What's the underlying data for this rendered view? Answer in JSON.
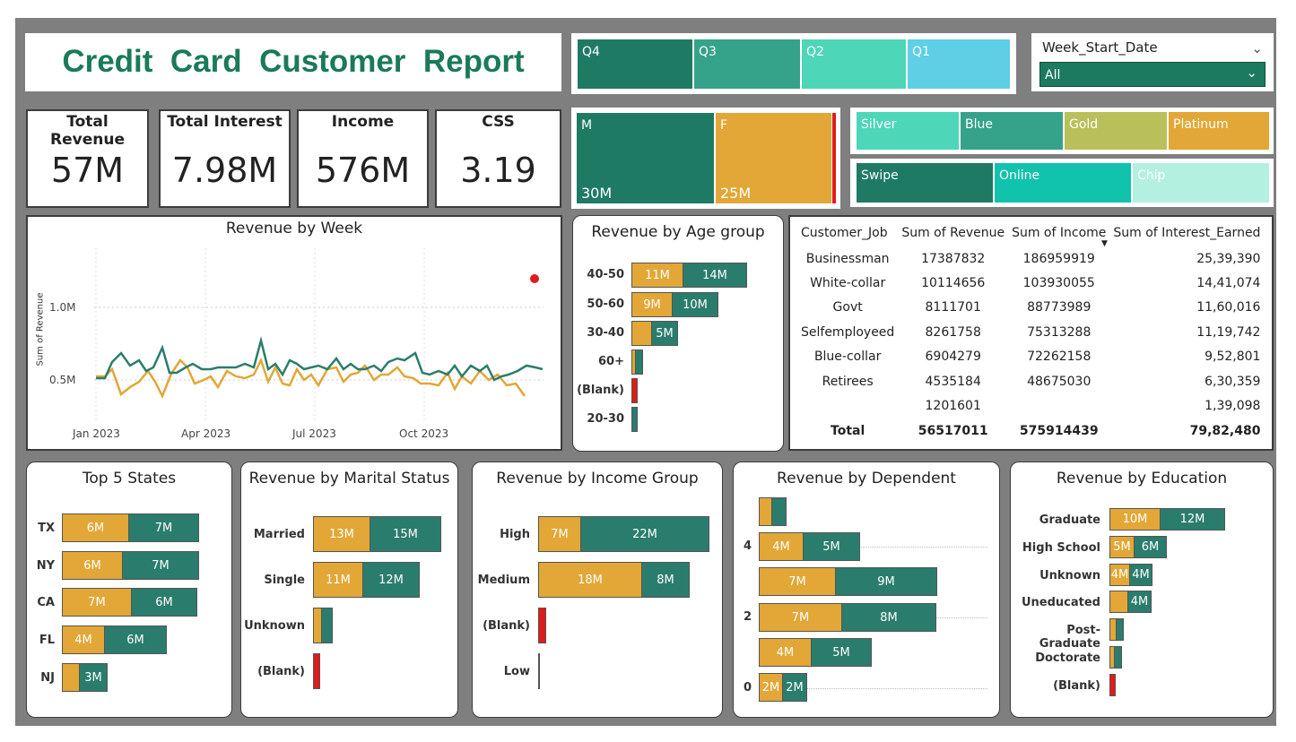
{
  "title": "Credit  Card  Customer  Report",
  "quarters": [
    "Q4",
    "Q3",
    "Q2",
    "Q1"
  ],
  "date_filter": {
    "label": "Week_Start_Date",
    "value": "All"
  },
  "kpis": {
    "revenue": {
      "label": "Total Revenue",
      "value": "57M"
    },
    "interest": {
      "label": "Total Interest",
      "value": "7.98M"
    },
    "income": {
      "label": "Income",
      "value": "576M"
    },
    "css": {
      "label": "CSS",
      "value": "3.19"
    }
  },
  "gender": [
    {
      "label": "M",
      "value": "30M"
    },
    {
      "label": "F",
      "value": "25M"
    }
  ],
  "card_categories": [
    "Silver",
    "Blue",
    "Gold",
    "Platinum"
  ],
  "use_chip": [
    "Swipe",
    "Online",
    "Chip"
  ],
  "colors": {
    "green": "#2a7d6c",
    "yellow": "#e2a736",
    "red": "#e01b1b",
    "title_green": "#1a7a5a"
  },
  "week_chart": {
    "title": "Revenue by Week",
    "ylabel": "Sum of Revenue",
    "yticks": [
      "1.0M",
      "0.5M"
    ],
    "xticks": [
      "Jan 2023",
      "Apr 2023",
      "Jul 2023",
      "Oct 2023"
    ]
  },
  "age_chart": {
    "title": "Revenue by Age group",
    "rows": [
      {
        "cat": "40-50",
        "a": "11M",
        "b": "14M"
      },
      {
        "cat": "50-60",
        "a": "9M",
        "b": "10M"
      },
      {
        "cat": "30-40",
        "a": "",
        "b": "5M"
      },
      {
        "cat": "60+",
        "a": "",
        "b": ""
      },
      {
        "cat": "(Blank)",
        "a": "",
        "b": ""
      },
      {
        "cat": "20-30",
        "a": "",
        "b": ""
      }
    ]
  },
  "job_table": {
    "headers": [
      "Customer_Job",
      "Sum of Revenue",
      "Sum of Income",
      "Sum of Interest_Earned"
    ],
    "rows": [
      [
        "Businessman",
        "17387832",
        "186959919",
        "25,39,390"
      ],
      [
        "White-collar",
        "10114656",
        "103930055",
        "14,41,074"
      ],
      [
        "Govt",
        "8111701",
        "88773989",
        "11,60,016"
      ],
      [
        "Selfemployeed",
        "8261758",
        "75313288",
        "11,19,742"
      ],
      [
        "Blue-collar",
        "6904279",
        "72262158",
        "9,52,801"
      ],
      [
        "Retirees",
        "4535184",
        "48675030",
        "6,30,359"
      ],
      [
        "",
        "1201601",
        "",
        "1,39,098"
      ]
    ],
    "total": [
      "Total",
      "56517011",
      "575914439",
      "79,82,480"
    ]
  },
  "states_chart": {
    "title": "Top 5 States",
    "rows": [
      {
        "cat": "TX",
        "a": "6M",
        "b": "7M"
      },
      {
        "cat": "NY",
        "a": "6M",
        "b": "7M"
      },
      {
        "cat": "CA",
        "a": "7M",
        "b": "6M"
      },
      {
        "cat": "FL",
        "a": "4M",
        "b": "6M"
      },
      {
        "cat": "NJ",
        "a": "",
        "b": "3M"
      }
    ]
  },
  "marital_chart": {
    "title": "Revenue by Marital Status",
    "rows": [
      {
        "cat": "Married",
        "a": "13M",
        "b": "15M"
      },
      {
        "cat": "Single",
        "a": "11M",
        "b": "12M"
      },
      {
        "cat": "Unknown",
        "a": "",
        "b": ""
      },
      {
        "cat": "(Blank)",
        "a": "",
        "b": ""
      }
    ]
  },
  "income_chart": {
    "title": "Revenue by Income Group",
    "rows": [
      {
        "cat": "High",
        "a": "7M",
        "b": "22M"
      },
      {
        "cat": "Medium",
        "a": "18M",
        "b": "8M"
      },
      {
        "cat": "(Blank)",
        "a": "",
        "b": ""
      },
      {
        "cat": "Low",
        "a": "",
        "b": ""
      }
    ]
  },
  "dependent_chart": {
    "title": "Revenue by Dependent",
    "ticks": [
      "4",
      "2",
      "0"
    ],
    "rows": [
      {
        "a": "",
        "b": ""
      },
      {
        "a": "4M",
        "b": "5M"
      },
      {
        "a": "7M",
        "b": "9M"
      },
      {
        "a": "7M",
        "b": "8M"
      },
      {
        "a": "4M",
        "b": "5M"
      },
      {
        "a": "2M",
        "b": "2M"
      }
    ]
  },
  "education_chart": {
    "title": "Revenue by Education",
    "rows": [
      {
        "cat": "Graduate",
        "a": "10M",
        "b": "12M"
      },
      {
        "cat": "High School",
        "a": "5M",
        "b": "6M"
      },
      {
        "cat": "Unknown",
        "a": "4M",
        "b": "4M"
      },
      {
        "cat": "Uneducated",
        "a": "",
        "b": "4M"
      },
      {
        "cat": "Post-Graduate",
        "a": "",
        "b": ""
      },
      {
        "cat": "Doctorate",
        "a": "",
        "b": ""
      },
      {
        "cat": "(Blank)",
        "a": "",
        "b": ""
      }
    ]
  }
}
